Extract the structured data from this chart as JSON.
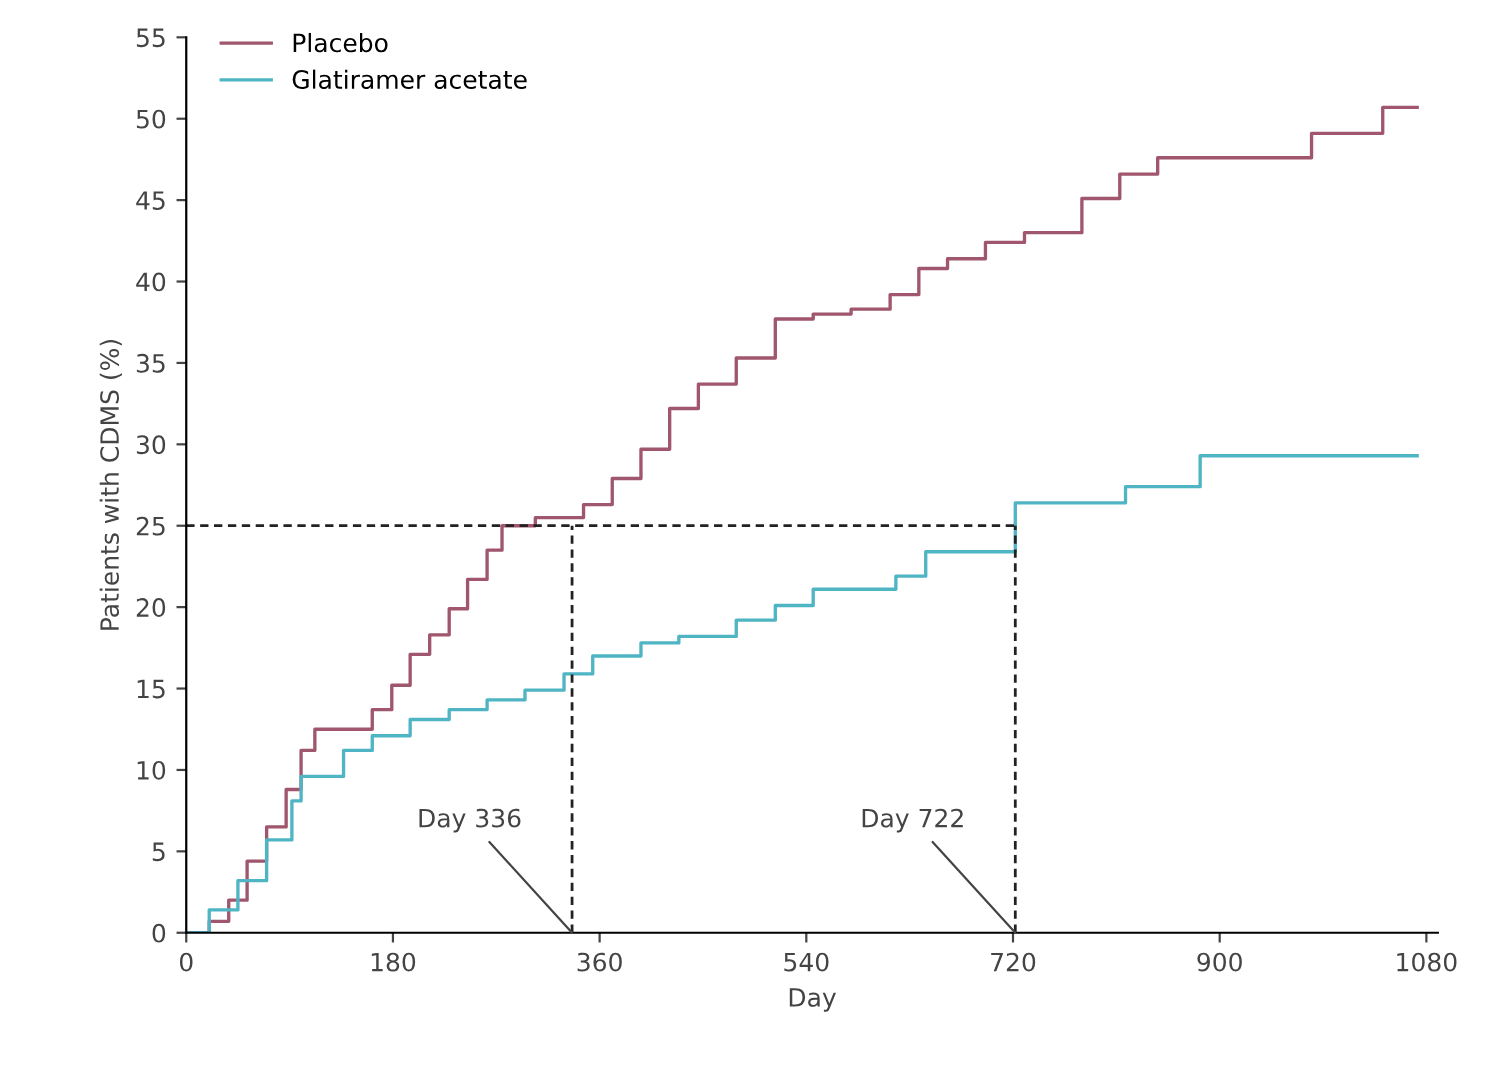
{
  "chart_data": {
    "type": "step",
    "xlabel": "Day",
    "ylabel": "Patients with CDMS (%)",
    "xlim": [
      0,
      1090
    ],
    "xticks": [
      0,
      180,
      360,
      540,
      720,
      900,
      1080
    ],
    "ylim": [
      0,
      55
    ],
    "yticks": [
      0,
      5,
      10,
      15,
      20,
      25,
      30,
      35,
      40,
      45,
      50,
      55
    ],
    "grid": false,
    "legend": "top left",
    "marker": "none",
    "line_style": "solid",
    "series": [
      {
        "name": "Placebo",
        "color": "#a0566c",
        "x": [
          0,
          20,
          37,
          53,
          70,
          87,
          100,
          112,
          145,
          162,
          179,
          195,
          212,
          229,
          245,
          262,
          275,
          304,
          346,
          371,
          396,
          421,
          446,
          479,
          513,
          546,
          579,
          613,
          638,
          663,
          696,
          730,
          780,
          813,
          846,
          980,
          1042,
          1072
        ],
        "values": [
          0,
          0.7,
          2,
          4.4,
          6.5,
          8.8,
          11.2,
          12.5,
          12.5,
          13.7,
          15.2,
          17.1,
          18.3,
          19.9,
          21.7,
          23.5,
          25,
          25.5,
          26.3,
          27.9,
          29.7,
          32.2,
          33.7,
          35.3,
          37.7,
          38,
          38.3,
          39.2,
          40.8,
          41.4,
          42.4,
          43,
          45.1,
          46.6,
          47.6,
          49.1,
          50.7,
          50.7
        ]
      },
      {
        "name": "Glatiramer acetate",
        "color": "#4fb5c4",
        "x": [
          0,
          20,
          45,
          70,
          92,
          100,
          137,
          162,
          195,
          229,
          262,
          295,
          329,
          354,
          396,
          429,
          479,
          513,
          546,
          618,
          644,
          722,
          818,
          883,
          1072
        ],
        "values": [
          0,
          1.4,
          3.2,
          5.7,
          8.1,
          9.6,
          11.2,
          12.1,
          13.1,
          13.7,
          14.3,
          14.9,
          15.9,
          17,
          17.8,
          18.2,
          19.2,
          20.1,
          21.1,
          21.9,
          23.4,
          26.4,
          27.4,
          29.3,
          29.3
        ]
      }
    ],
    "ref_lines": [
      {
        "axis": "y",
        "value": 25,
        "label": null,
        "color": "#222222",
        "line_style": "dashed"
      },
      {
        "axis": "x",
        "value": 336,
        "label": "Day 336",
        "color": "#222222",
        "line_style": "dashed"
      },
      {
        "axis": "x",
        "value": 722,
        "label": "Day 722",
        "color": "#222222",
        "line_style": "dashed"
      }
    ]
  }
}
